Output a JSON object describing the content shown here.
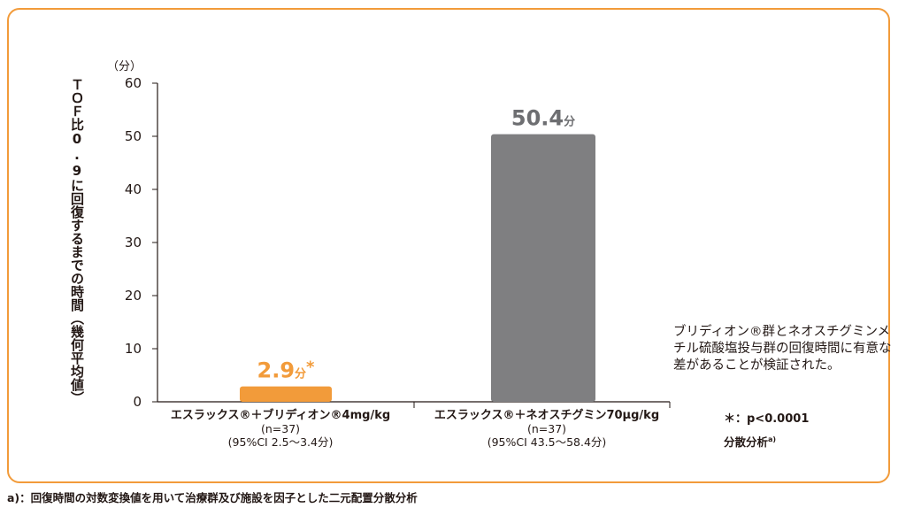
{
  "colors": {
    "frame": "#f29b3a",
    "bar1": "#f29b3a",
    "bar2": "#7f7f81",
    "axis": "#231815"
  },
  "chart_data": {
    "type": "bar",
    "unit_label": "（分）",
    "ylabel": "ＴＯＦ比0.9に回復するまでの時間（幾何平均値）",
    "ylim": [
      0,
      60
    ],
    "yticks": [
      "0",
      "10",
      "20",
      "30",
      "40",
      "50",
      "60"
    ],
    "grid": false,
    "categories": [
      "エスラックス®＋ブリディオン®4mg/kg",
      "エスラックス®＋ネオスチグミン70μg/kg"
    ],
    "category_lines": [
      {
        "main": "エスラックス®＋ブリディオン®4mg/kg",
        "n": "(n=37)",
        "ci": "(95%CI 2.5〜3.4分)"
      },
      {
        "main": "エスラックス®＋ネオスチグミン70μg/kg",
        "n": "(n=37)",
        "ci": "(95%CI 43.5〜58.4分)"
      }
    ],
    "values": [
      2.9,
      50.4
    ],
    "data_labels": [
      {
        "value": "2.9",
        "unit": "分",
        "mark": "*"
      },
      {
        "value": "50.4",
        "unit": "分",
        "mark": ""
      }
    ]
  },
  "note": "ブリディオン®群とネオスチグミンメチル硫酸塩投与群の回復時間に有意な差があることが検証された。",
  "pvalue_text": "＊：p<0.0001",
  "analysis_text": "分散分析",
  "analysis_sup": "a)",
  "footnote": "a)：回復時間の対数変換値を用いて治療群及び施設を因子とした二元配置分散分析"
}
